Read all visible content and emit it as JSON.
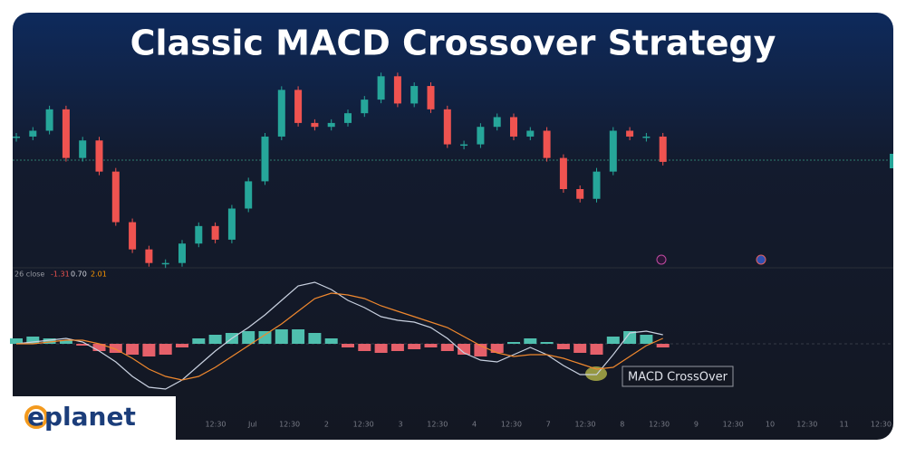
{
  "chart_data": {
    "type": "candlestick",
    "title": "Classic MACD Crossover Strategy",
    "price": {
      "color_up": "#26a69a",
      "color_down": "#ef5350",
      "ylim": [
        0,
        100
      ],
      "values": [
        67,
        70,
        81,
        56,
        65,
        49,
        23,
        9,
        2,
        2,
        12,
        21,
        14,
        30,
        44,
        67,
        91,
        74,
        72,
        74,
        79,
        86,
        98,
        84,
        93,
        81,
        63,
        63,
        72,
        77,
        67,
        70,
        56,
        40,
        35,
        49,
        70,
        67,
        67,
        54
      ]
    },
    "macd": {
      "legend_name": "26 close",
      "legend_values": [
        {
          "text": "-1.31",
          "color": "#ef5350"
        },
        {
          "text": "0.70",
          "color": "#d1d4dc"
        },
        {
          "text": "2.01",
          "color": "#ff9800"
        }
      ],
      "ylim": [
        -4,
        4
      ],
      "series": [
        {
          "name": "MACD",
          "color": "#c9d1e0",
          "values": [
            0,
            0.1,
            0.2,
            0.3,
            0.1,
            -0.4,
            -1.0,
            -1.8,
            -2.4,
            -2.5,
            -2.0,
            -1.2,
            -0.4,
            0.3,
            0.9,
            1.6,
            2.4,
            3.2,
            3.4,
            3.0,
            2.4,
            2.0,
            1.5,
            1.3,
            1.2,
            0.9,
            0.3,
            -0.5,
            -0.9,
            -1.0,
            -0.6,
            -0.2,
            -0.6,
            -1.2,
            -1.7,
            -1.7,
            -0.6,
            0.6,
            0.7,
            0.5
          ]
        },
        {
          "name": "Signal",
          "color": "#f0882e",
          "values": [
            0,
            0,
            0.1,
            0.2,
            0.2,
            0,
            -0.3,
            -0.8,
            -1.4,
            -1.8,
            -2.0,
            -1.8,
            -1.3,
            -0.7,
            -0.1,
            0.5,
            1.1,
            1.8,
            2.5,
            2.8,
            2.7,
            2.5,
            2.1,
            1.8,
            1.5,
            1.2,
            0.9,
            0.4,
            -0.1,
            -0.5,
            -0.7,
            -0.6,
            -0.6,
            -0.8,
            -1.1,
            -1.4,
            -1.3,
            -0.7,
            -0.1,
            0.3
          ]
        }
      ],
      "histogram": {
        "color_up": "#4fbfae",
        "color_down": "#e5606a",
        "values": [
          0.3,
          0.4,
          0.3,
          0.2,
          -0.1,
          -0.4,
          -0.5,
          -0.6,
          -0.7,
          -0.6,
          -0.2,
          0.3,
          0.5,
          0.6,
          0.7,
          0.7,
          0.8,
          0.8,
          0.6,
          0.3,
          -0.2,
          -0.4,
          -0.5,
          -0.4,
          -0.3,
          -0.2,
          -0.4,
          -0.6,
          -0.7,
          -0.5,
          0.1,
          0.3,
          0.1,
          -0.3,
          -0.5,
          -0.6,
          0.4,
          0.7,
          0.5,
          -0.2
        ]
      }
    },
    "x_axis_labels": [
      "12:30",
      "Jul",
      "12:30",
      "2",
      "12:30",
      "3",
      "12:30",
      "4",
      "12:30",
      "7",
      "12:30",
      "8",
      "12:30",
      "9",
      "12:30",
      "10",
      "12:30",
      "11",
      "12:30"
    ],
    "annotation": "MACD CrossOver",
    "logo": "eplanet"
  }
}
